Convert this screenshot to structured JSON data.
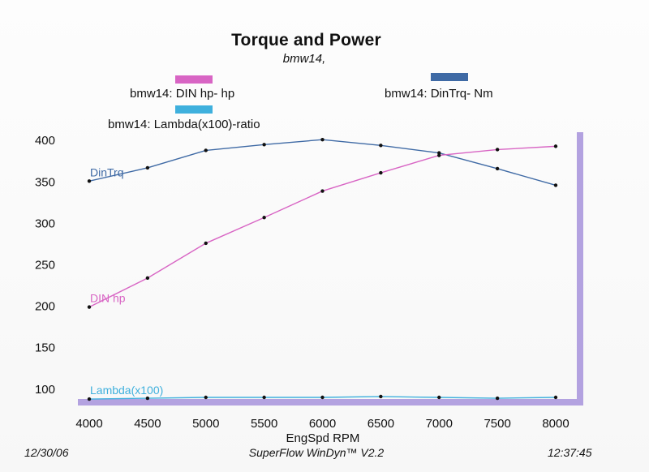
{
  "chart_data": {
    "type": "line",
    "title": "Torque and Power",
    "subtitle": "bmw14,",
    "xlabel": "EngSpd  RPM",
    "ylabel": "",
    "xlim": [
      4000,
      8000
    ],
    "ylim": [
      90,
      410
    ],
    "x": [
      4000,
      4500,
      5000,
      5500,
      6000,
      6500,
      7000,
      7500,
      8000
    ],
    "xticks": [
      "4000",
      "4500",
      "5000",
      "5500",
      "6000",
      "6500",
      "7000",
      "7500",
      "8000"
    ],
    "yticks": [
      "100",
      "150",
      "200",
      "250",
      "300",
      "350",
      "400"
    ],
    "grid": false,
    "legend": [
      {
        "label": "bmw14: DIN hp-  hp",
        "color": "#d865c4"
      },
      {
        "label": "bmw14: DinTrq-  Nm",
        "color": "#3f6aa5"
      },
      {
        "label": "bmw14: Lambda(x100)-ratio",
        "color": "#3fb0dd"
      }
    ],
    "series": [
      {
        "name": "DinTrq",
        "color": "#3f6aa5",
        "values": [
          351,
          367,
          388,
          395,
          401,
          394,
          385,
          366,
          346
        ]
      },
      {
        "name": "DIN hp",
        "color": "#d865c4",
        "values": [
          199,
          234,
          276,
          307,
          339,
          361,
          382,
          389,
          393
        ]
      },
      {
        "name": "Lambda(x100)",
        "color": "#3fb0dd",
        "values": [
          88,
          89,
          90,
          90,
          90,
          91,
          90,
          89,
          90
        ]
      }
    ]
  },
  "footer": {
    "date": "12/30/06",
    "software": "SuperFlow WinDyn™ V2.2",
    "time": "12:37:45"
  }
}
